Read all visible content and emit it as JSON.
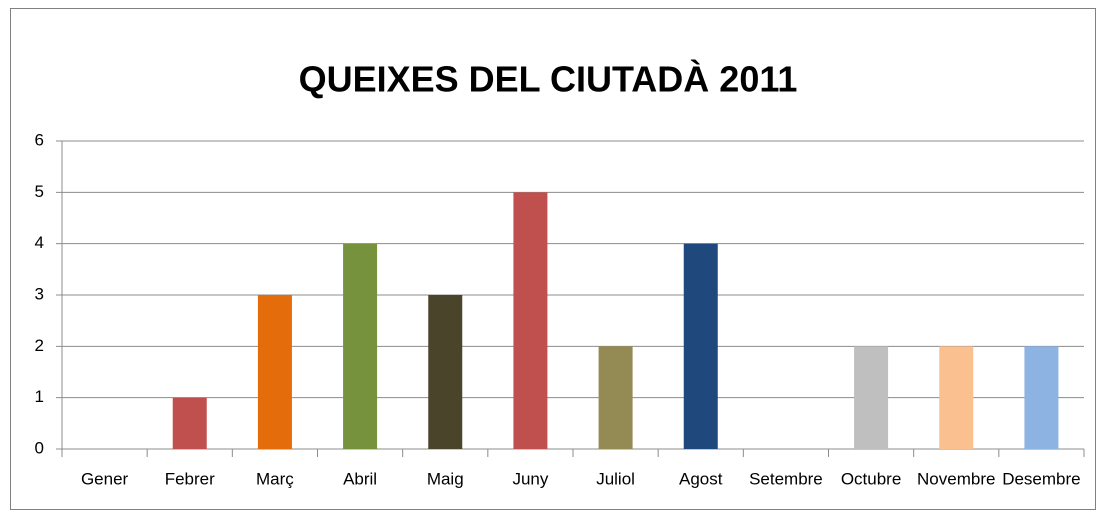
{
  "chart_data": {
    "type": "bar",
    "title": "QUEIXES DEL CIUTADÀ 2011",
    "categories": [
      "Gener",
      "Febrer",
      "Març",
      "Abril",
      "Maig",
      "Juny",
      "Juliol",
      "Agost",
      "Setembre",
      "Octubre",
      "Novembre",
      "Desembre"
    ],
    "values": [
      0,
      1,
      3,
      4,
      3,
      5,
      2,
      4,
      0,
      2,
      2,
      2
    ],
    "colors": [
      "#4f81bd",
      "#c0504d",
      "#e46c0a",
      "#76923c",
      "#4a452a",
      "#c0504d",
      "#948a54",
      "#1f497d",
      "#4bacc6",
      "#bfbfbf",
      "#fac090",
      "#8db3e2"
    ],
    "ylim": [
      0,
      6
    ],
    "yticks": [
      0,
      1,
      2,
      3,
      4,
      5,
      6
    ],
    "grid": true
  }
}
